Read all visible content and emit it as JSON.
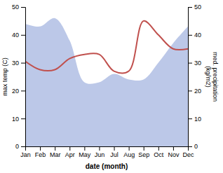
{
  "chart_data": {
    "type": "line",
    "categories": [
      "Jan",
      "Feb",
      "Mar",
      "Apr",
      "May",
      "Jun",
      "Jul",
      "Aug",
      "Sep",
      "Oct",
      "Nov",
      "Dec"
    ],
    "xlabel": "date (month)",
    "ylabel": "max temp (C)",
    "y2label": "med. precipitation\n(kg/m2)",
    "ylim": [
      0,
      50
    ],
    "yticks": [
      0,
      10,
      20,
      30,
      40,
      50
    ],
    "y2lim": [
      0,
      50
    ],
    "y2ticks": [
      0,
      10,
      20,
      30,
      40,
      50
    ],
    "series": [
      {
        "type": "area",
        "axis": "y2",
        "color": "#bcc8e8",
        "values": [
          44,
          43,
          46,
          38,
          23,
          23,
          26,
          24,
          24,
          30,
          37,
          43
        ]
      },
      {
        "type": "line",
        "color": "#c0504d",
        "values": [
          30.5,
          27.5,
          27.5,
          31.5,
          33.0,
          33.0,
          27.0,
          27.0,
          45.0,
          40.0,
          35.0,
          35.0
        ]
      }
    ]
  }
}
